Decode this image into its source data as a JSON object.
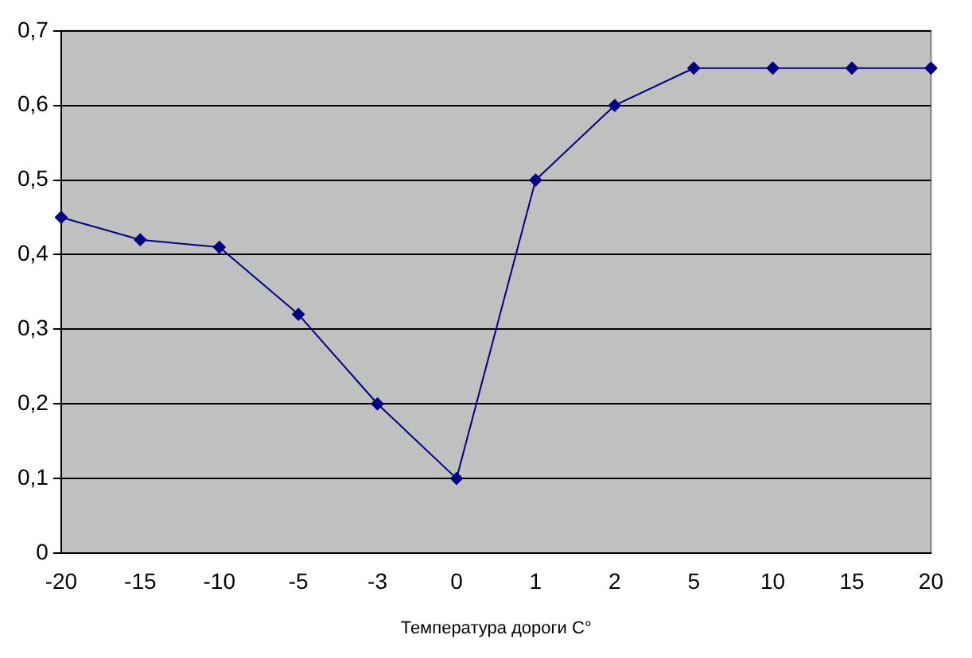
{
  "chart_data": {
    "type": "line",
    "xlabel": "Температура дороги С°",
    "categories": [
      "-20",
      "-15",
      "-10",
      "-5",
      "-3",
      "0",
      "1",
      "2",
      "5",
      "10",
      "15",
      "20"
    ],
    "series": [
      {
        "color": "#000080",
        "values": [
          0.45,
          0.42,
          0.41,
          0.32,
          0.2,
          0.1,
          0.5,
          0.6,
          0.65,
          0.65,
          0.65,
          0.65
        ]
      }
    ],
    "ylim": [
      0,
      0.7
    ],
    "yticks": [
      0,
      {
        "value": 0.1,
        "label": "0,1"
      },
      {
        "value": 0.2,
        "label": "0,2"
      },
      {
        "value": 0.3,
        "label": "0,3"
      },
      {
        "value": 0.4,
        "label": "0,4"
      },
      {
        "value": 0.5,
        "label": "0,5"
      },
      {
        "value": 0.6,
        "label": "0,6"
      },
      {
        "value": 0.7,
        "label": "0,7"
      }
    ],
    "grid": "y",
    "legend": false,
    "marker": "diamond",
    "line_style": "solid"
  }
}
